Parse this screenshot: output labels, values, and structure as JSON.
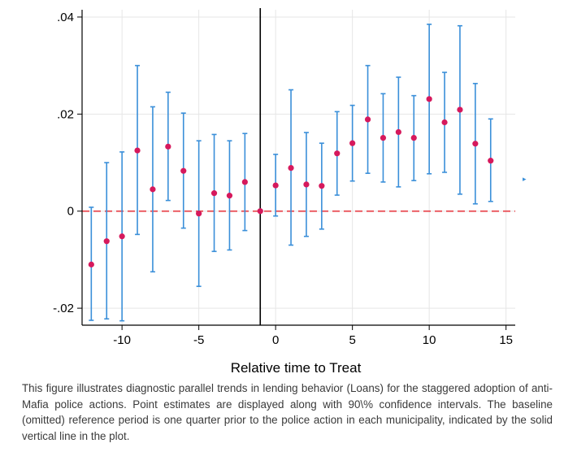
{
  "chart_data": {
    "type": "scatter",
    "title": "",
    "xlabel": "Relative time to Treat",
    "ylabel": "",
    "xlim": [
      -12.6,
      15.6
    ],
    "ylim": [
      -0.0235,
      0.0415
    ],
    "xticks": [
      -10,
      -5,
      0,
      5,
      10,
      15
    ],
    "xtick_labels": [
      "-10",
      "-5",
      "0",
      "5",
      "10",
      "15"
    ],
    "yticks": [
      -0.02,
      0,
      0.02,
      0.04
    ],
    "ytick_labels": [
      "-.02",
      "0",
      ".02",
      ".04"
    ],
    "grid": true,
    "reference_lines": [
      {
        "axis": "y",
        "value": 0,
        "style": "dashed",
        "color": "#e8484f"
      },
      {
        "axis": "x",
        "value": -1,
        "style": "solid",
        "color": "#000000"
      }
    ],
    "series": [
      {
        "type": "errorbar",
        "color": "#3a8fd9",
        "marker_color": "#d6195c",
        "points": [
          {
            "x": -12,
            "y": -0.011,
            "lo": -0.0225,
            "hi": 0.0008
          },
          {
            "x": -11,
            "y": -0.0062,
            "lo": -0.0222,
            "hi": 0.01
          },
          {
            "x": -10,
            "y": -0.0052,
            "lo": -0.0226,
            "hi": 0.0122
          },
          {
            "x": -9,
            "y": 0.0125,
            "lo": -0.0048,
            "hi": 0.03
          },
          {
            "x": -8,
            "y": 0.0045,
            "lo": -0.0125,
            "hi": 0.0215
          },
          {
            "x": -7,
            "y": 0.0133,
            "lo": 0.0022,
            "hi": 0.0245
          },
          {
            "x": -6,
            "y": 0.0083,
            "lo": -0.0035,
            "hi": 0.0202
          },
          {
            "x": -5,
            "y": -0.0005,
            "lo": -0.0155,
            "hi": 0.0145
          },
          {
            "x": -4,
            "y": 0.0037,
            "lo": -0.0083,
            "hi": 0.0158
          },
          {
            "x": -3,
            "y": 0.0032,
            "lo": -0.008,
            "hi": 0.0145
          },
          {
            "x": -2,
            "y": 0.006,
            "lo": -0.004,
            "hi": 0.016
          },
          {
            "x": -1,
            "y": 0.0,
            "lo": 0.0,
            "hi": 0.0
          },
          {
            "x": 0,
            "y": 0.0053,
            "lo": -0.001,
            "hi": 0.0117
          },
          {
            "x": 1,
            "y": 0.0089,
            "lo": -0.007,
            "hi": 0.025
          },
          {
            "x": 2,
            "y": 0.0055,
            "lo": -0.0052,
            "hi": 0.0162
          },
          {
            "x": 3,
            "y": 0.0052,
            "lo": -0.0037,
            "hi": 0.014
          },
          {
            "x": 4,
            "y": 0.0119,
            "lo": 0.0033,
            "hi": 0.0205
          },
          {
            "x": 5,
            "y": 0.014,
            "lo": 0.0062,
            "hi": 0.0218
          },
          {
            "x": 6,
            "y": 0.0189,
            "lo": 0.0078,
            "hi": 0.03
          },
          {
            "x": 7,
            "y": 0.0151,
            "lo": 0.006,
            "hi": 0.0242
          },
          {
            "x": 8,
            "y": 0.0163,
            "lo": 0.005,
            "hi": 0.0276
          },
          {
            "x": 9,
            "y": 0.0151,
            "lo": 0.0063,
            "hi": 0.0238
          },
          {
            "x": 10,
            "y": 0.0231,
            "lo": 0.0077,
            "hi": 0.0385
          },
          {
            "x": 11,
            "y": 0.0183,
            "lo": 0.008,
            "hi": 0.0286
          },
          {
            "x": 12,
            "y": 0.0209,
            "lo": 0.0035,
            "hi": 0.0382
          },
          {
            "x": 13,
            "y": 0.0139,
            "lo": 0.0015,
            "hi": 0.0263
          },
          {
            "x": 14,
            "y": 0.0104,
            "lo": 0.002,
            "hi": 0.019
          }
        ]
      }
    ]
  },
  "caption": "This figure illustrates diagnostic parallel trends in lending behavior (Loans) for the staggered adoption of anti-Mafia police actions. Point estimates are displayed along with 90\\% confidence intervals. The baseline (omitted) reference period is one quarter prior to the police action in each municipality, indicated by the solid vertical line in the plot.",
  "legend_marker": "▸"
}
